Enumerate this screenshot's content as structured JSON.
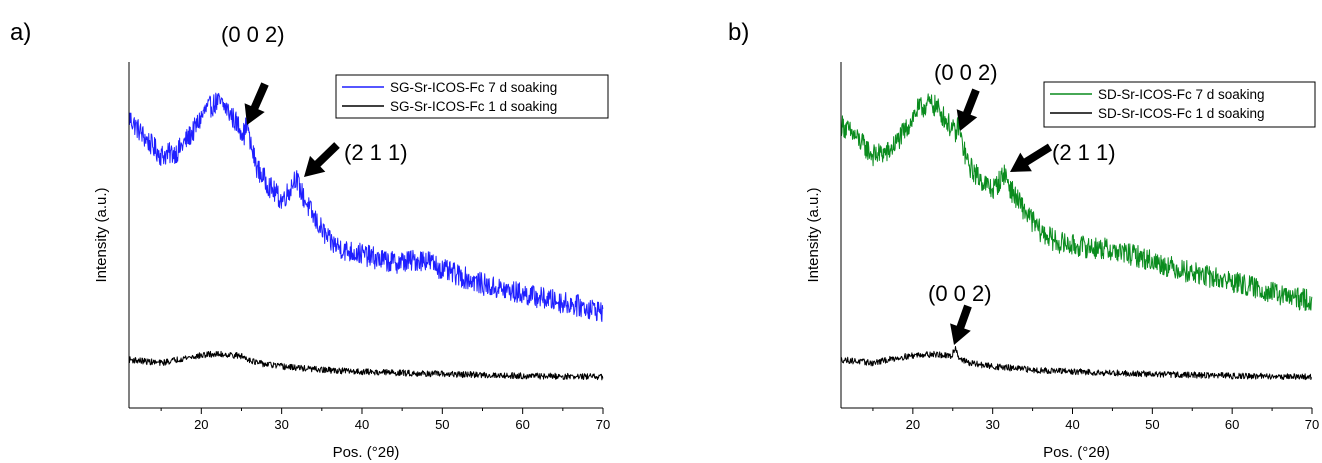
{
  "chart_data": [
    {
      "panel_label": "a)",
      "type": "line",
      "xlabel": "Pos. (°2θ)",
      "ylabel": "Intensity (a.u.)",
      "xlim": [
        11,
        70
      ],
      "ylim": [
        0,
        100
      ],
      "x_ticks": [
        20,
        30,
        40,
        50,
        60,
        70
      ],
      "y_ticks_labeled": false,
      "grid": false,
      "legend_position": "top-right",
      "series": [
        {
          "name": "SG-Sr-ICOS-Fc 7 d soaking",
          "color": "#1f1fff",
          "noise": 3.2,
          "points": [
            [
              11,
              84
            ],
            [
              13,
              78
            ],
            [
              15,
              73
            ],
            [
              17,
              74
            ],
            [
              19,
              80
            ],
            [
              20.5,
              86
            ],
            [
              22,
              88.5
            ],
            [
              23,
              87
            ],
            [
              24.5,
              82
            ],
            [
              25.4,
              79
            ],
            [
              25.7,
              84
            ],
            [
              26,
              77
            ],
            [
              27,
              69
            ],
            [
              28.5,
              64
            ],
            [
              30,
              60
            ],
            [
              31,
              63
            ],
            [
              31.7,
              67
            ],
            [
              32.5,
              62
            ],
            [
              34,
              55
            ],
            [
              36,
              48
            ],
            [
              38,
              45.5
            ],
            [
              40,
              44.5
            ],
            [
              42,
              43
            ],
            [
              44,
              42
            ],
            [
              46,
              42.5
            ],
            [
              48,
              43
            ],
            [
              50,
              40
            ],
            [
              53,
              37.5
            ],
            [
              56,
              35
            ],
            [
              60,
              33
            ],
            [
              64,
              31
            ],
            [
              67,
              29.5
            ],
            [
              70,
              28
            ]
          ]
        },
        {
          "name": "SG-Sr-ICOS-Fc 1 d soaking",
          "color": "#000000",
          "noise": 0.9,
          "points": [
            [
              11,
              14
            ],
            [
              15,
              13
            ],
            [
              18,
              14.5
            ],
            [
              21,
              15.5
            ],
            [
              23,
              15.5
            ],
            [
              25,
              15
            ],
            [
              27,
              13
            ],
            [
              30,
              12
            ],
            [
              35,
              11
            ],
            [
              40,
              10.5
            ],
            [
              50,
              9.8
            ],
            [
              60,
              9.3
            ],
            [
              70,
              9
            ]
          ]
        }
      ],
      "annotations": [
        {
          "text": "(0 0 2)",
          "x": 25.7,
          "y": 84
        },
        {
          "text": "(2 1 1)",
          "x": 31.7,
          "y": 67
        }
      ]
    },
    {
      "panel_label": "b)",
      "type": "line",
      "xlabel": "Pos. (°2θ)",
      "ylabel": "Intensity (a.u.)",
      "xlim": [
        11,
        70
      ],
      "ylim": [
        0,
        100
      ],
      "x_ticks": [
        20,
        30,
        40,
        50,
        60,
        70
      ],
      "y_ticks_labeled": false,
      "grid": false,
      "legend_position": "top-right",
      "series": [
        {
          "name": "SD-Sr-ICOS-Fc 7 d soaking",
          "color": "#0a8c1e",
          "noise": 3.2,
          "points": [
            [
              11,
              82
            ],
            [
              13,
              78
            ],
            [
              15,
              73
            ],
            [
              17,
              74
            ],
            [
              19,
              80
            ],
            [
              20.5,
              86
            ],
            [
              22,
              88
            ],
            [
              23,
              87
            ],
            [
              24.5,
              82
            ],
            [
              25.4,
              79
            ],
            [
              25.7,
              82
            ],
            [
              26.2,
              76
            ],
            [
              27,
              70
            ],
            [
              28.5,
              66
            ],
            [
              30,
              63
            ],
            [
              31,
              66
            ],
            [
              31.5,
              68
            ],
            [
              32.3,
              63
            ],
            [
              34,
              57
            ],
            [
              36,
              51
            ],
            [
              38,
              48
            ],
            [
              40,
              47
            ],
            [
              44,
              46
            ],
            [
              48,
              44
            ],
            [
              52,
              41
            ],
            [
              56,
              38.5
            ],
            [
              60,
              36.5
            ],
            [
              64,
              34
            ],
            [
              67,
              32
            ],
            [
              70,
              31
            ]
          ]
        },
        {
          "name": "SD-Sr-ICOS-Fc 1 d soaking",
          "color": "#000000",
          "noise": 0.9,
          "points": [
            [
              11,
              14
            ],
            [
              15,
              13
            ],
            [
              18,
              14.5
            ],
            [
              21,
              15.5
            ],
            [
              23,
              15.5
            ],
            [
              24.8,
              14.8
            ],
            [
              25.3,
              17.5
            ],
            [
              25.8,
              14.5
            ],
            [
              27,
              13
            ],
            [
              30,
              12
            ],
            [
              35,
              11
            ],
            [
              40,
              10.5
            ],
            [
              50,
              9.8
            ],
            [
              60,
              9.3
            ],
            [
              70,
              9
            ]
          ]
        }
      ],
      "annotations": [
        {
          "text": "(0 0 2)",
          "x": 26,
          "y": 79
        },
        {
          "text": "(2 1 1)",
          "x": 31.5,
          "y": 67
        },
        {
          "text": "(0 0 2)",
          "x": 25.3,
          "y": 17.5
        }
      ]
    }
  ]
}
